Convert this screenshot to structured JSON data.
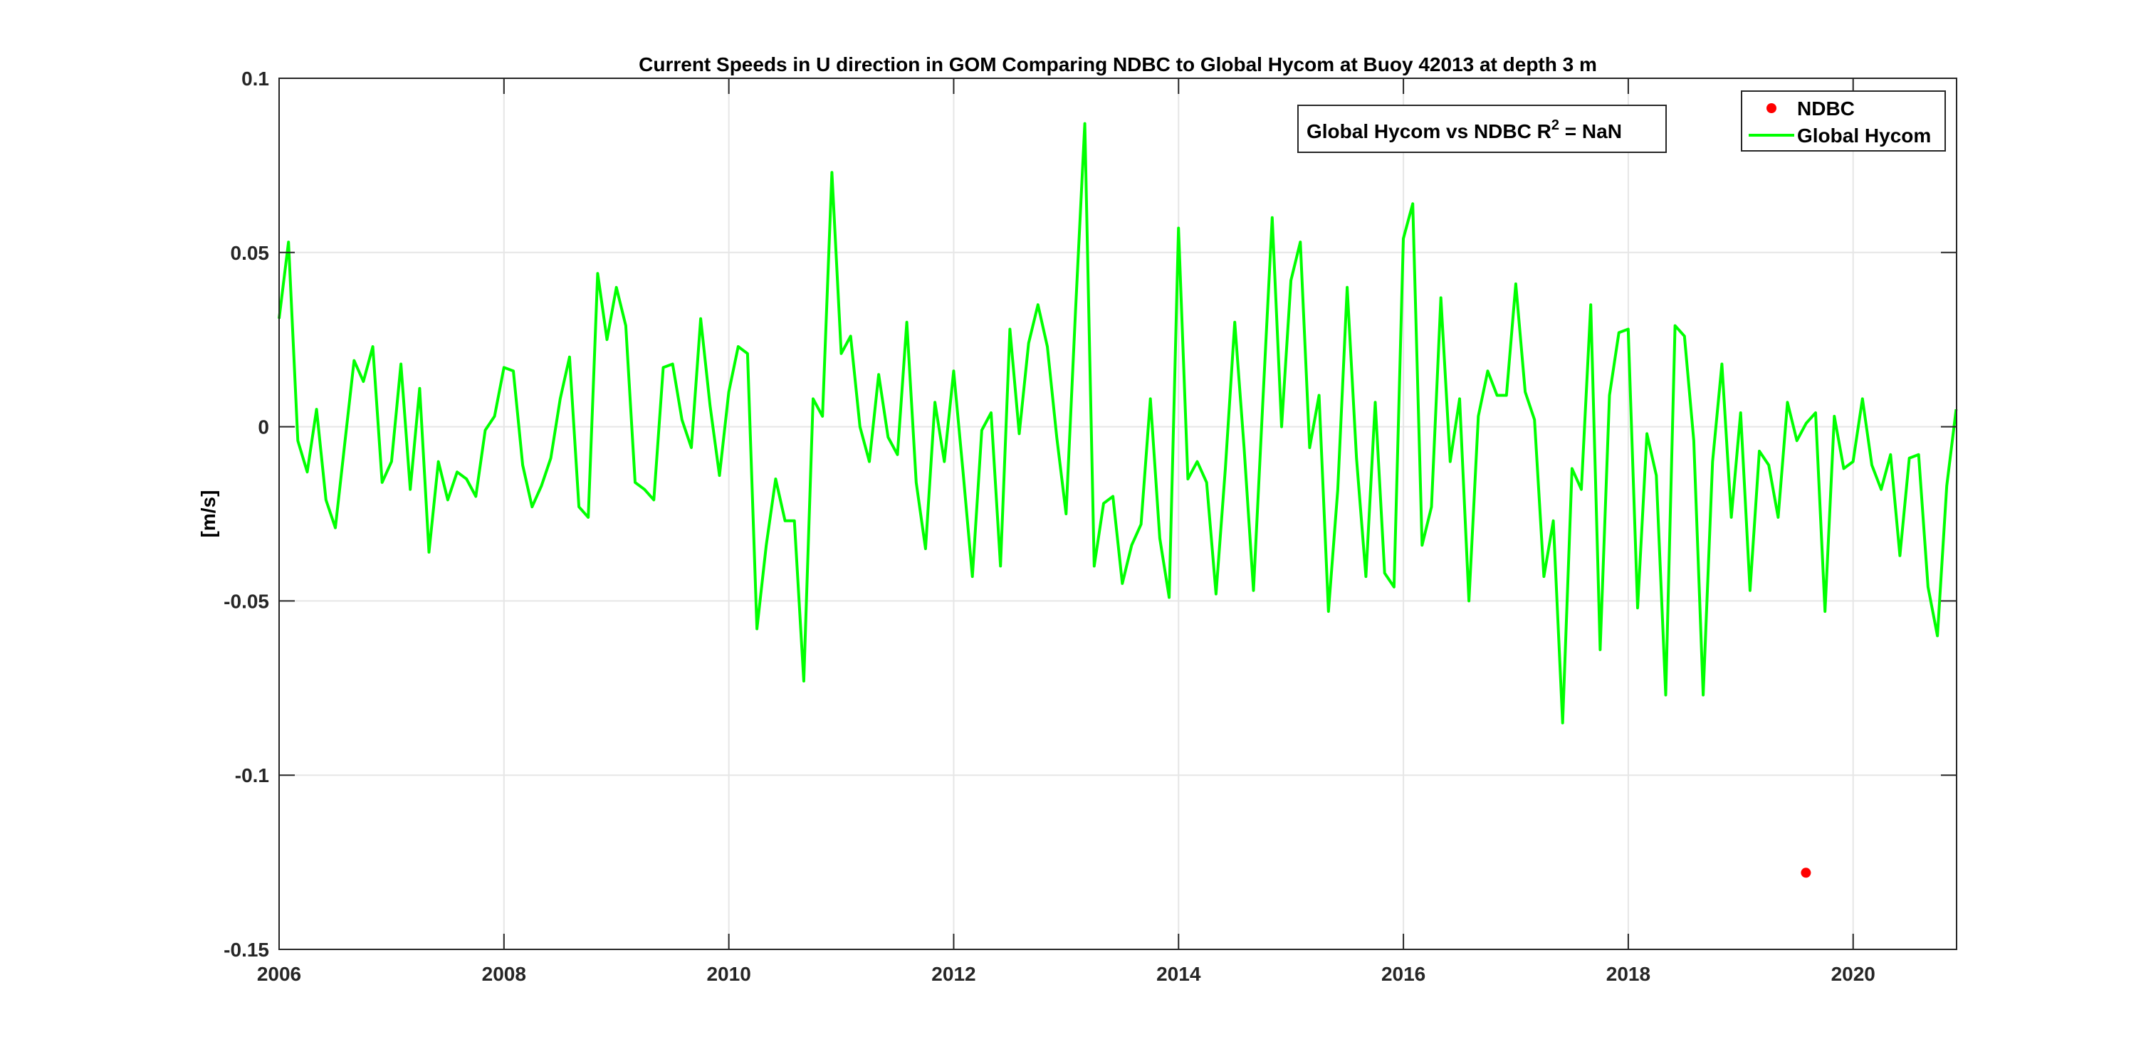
{
  "chart_data": {
    "type": "line",
    "title": "Current Speeds in U direction in GOM Comparing NDBC to Global Hycom at Buoy  42013  at depth  3 m",
    "xlabel": "",
    "ylabel": "[m/s]",
    "xlim": [
      2006,
      2020.92
    ],
    "ylim": [
      -0.15,
      0.1
    ],
    "x_ticks": [
      2006,
      2008,
      2010,
      2012,
      2014,
      2016,
      2018,
      2020
    ],
    "x_tick_labels": [
      "2006",
      "2008",
      "2010",
      "2012",
      "2014",
      "2016",
      "2018",
      "2020"
    ],
    "y_ticks": [
      -0.15,
      -0.1,
      -0.05,
      0,
      0.05,
      0.1
    ],
    "y_tick_labels": [
      "-0.15",
      "-0.1",
      "-0.05",
      "0",
      "0.05",
      "0.1"
    ],
    "grid": true,
    "legend_position": "top-right",
    "annotation": {
      "prefix": "Global Hycom vs NDBC R",
      "superscript": "2",
      "suffix": " = NaN"
    },
    "series": [
      {
        "name": "NDBC",
        "style": "markers",
        "color": "#ff0000",
        "x": [
          2019.58
        ],
        "y": [
          -0.128
        ]
      },
      {
        "name": "Global Hycom",
        "style": "line",
        "color": "#00ff00",
        "x_start": 2006.0,
        "x_step": 0.08333,
        "y": [
          0.031,
          0.053,
          -0.004,
          -0.013,
          0.005,
          -0.021,
          -0.029,
          -0.005,
          0.019,
          0.013,
          0.023,
          -0.016,
          -0.01,
          0.018,
          -0.018,
          0.011,
          -0.036,
          -0.01,
          -0.021,
          -0.013,
          -0.015,
          -0.02,
          -0.001,
          0.003,
          0.017,
          0.016,
          -0.011,
          -0.023,
          -0.017,
          -0.009,
          0.008,
          0.02,
          -0.023,
          -0.026,
          0.044,
          0.025,
          0.04,
          0.029,
          -0.016,
          -0.018,
          -0.021,
          0.017,
          0.018,
          0.002,
          -0.006,
          0.031,
          0.006,
          -0.014,
          0.01,
          0.023,
          0.021,
          -0.058,
          -0.034,
          -0.015,
          -0.027,
          -0.027,
          -0.073,
          0.008,
          0.003,
          0.073,
          0.021,
          0.026,
          0.0,
          -0.01,
          0.015,
          -0.003,
          -0.008,
          0.03,
          -0.016,
          -0.035,
          0.007,
          -0.01,
          0.016,
          -0.013,
          -0.043,
          -0.001,
          0.004,
          -0.04,
          0.028,
          -0.002,
          0.024,
          0.035,
          0.023,
          -0.003,
          -0.025,
          0.033,
          0.087,
          -0.04,
          -0.022,
          -0.02,
          -0.045,
          -0.034,
          -0.028,
          0.008,
          -0.032,
          -0.049,
          0.057,
          -0.015,
          -0.01,
          -0.016,
          -0.048,
          -0.012,
          0.03,
          -0.006,
          -0.047,
          0.007,
          0.06,
          0.0,
          0.042,
          0.053,
          -0.006,
          0.009,
          -0.053,
          -0.018,
          0.04,
          -0.009,
          -0.043,
          0.007,
          -0.042,
          -0.046,
          0.054,
          0.064,
          -0.034,
          -0.023,
          0.037,
          -0.01,
          0.008,
          -0.05,
          0.003,
          0.016,
          0.009,
          0.009,
          0.041,
          0.01,
          0.002,
          -0.043,
          -0.027,
          -0.085,
          -0.012,
          -0.018,
          0.035,
          -0.064,
          0.009,
          0.027,
          0.028,
          -0.052,
          -0.002,
          -0.014,
          -0.077,
          0.029,
          0.026,
          -0.004,
          -0.077,
          -0.01,
          0.018,
          -0.026,
          0.004,
          -0.047,
          -0.007,
          -0.011,
          -0.026,
          0.007,
          -0.004,
          0.001,
          0.004,
          -0.053,
          0.003,
          -0.012,
          -0.01,
          0.008,
          -0.011,
          -0.018,
          -0.008,
          -0.037,
          -0.009,
          -0.008,
          -0.046,
          -0.06,
          -0.017,
          0.005
        ]
      }
    ]
  }
}
